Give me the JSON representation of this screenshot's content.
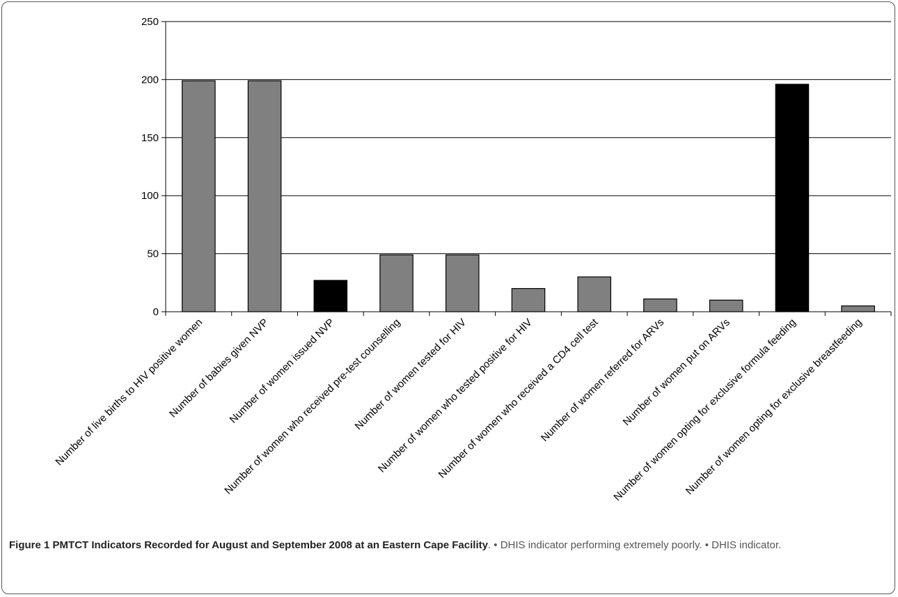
{
  "chart_data": {
    "type": "bar",
    "categories": [
      "Number of live births to HIV positive women",
      "Number of babies given NVP",
      "Number of women issued NVP",
      "Number of women who received pre-test counselling",
      "Number of women tested for HIV",
      "Number of women who tested positive for HIV",
      "Number of women who received a CD4 cell test",
      "Number of women referred for ARVs",
      "Number of women put on ARVs",
      "Number of women opting for exclusive formula feeding",
      "Number of women opting for exclusive breastfeeding"
    ],
    "values": [
      199,
      199,
      27,
      49,
      49,
      20,
      30,
      11,
      10,
      196,
      5
    ],
    "bar_colors": [
      "#808080",
      "#808080",
      "#000000",
      "#808080",
      "#808080",
      "#808080",
      "#808080",
      "#808080",
      "#808080",
      "#000000",
      "#808080"
    ],
    "ylim": [
      0,
      250
    ],
    "yticks": [
      0,
      50,
      100,
      150,
      200,
      250
    ],
    "grid": true,
    "xlabel": "",
    "ylabel": ""
  },
  "caption": {
    "label": "Figure 1",
    "title": "PMTCT Indicators Recorded for August and September 2008 at an Eastern Cape Facility",
    "text": ". • DHIS indicator performing extremely poorly. • DHIS indicator."
  }
}
